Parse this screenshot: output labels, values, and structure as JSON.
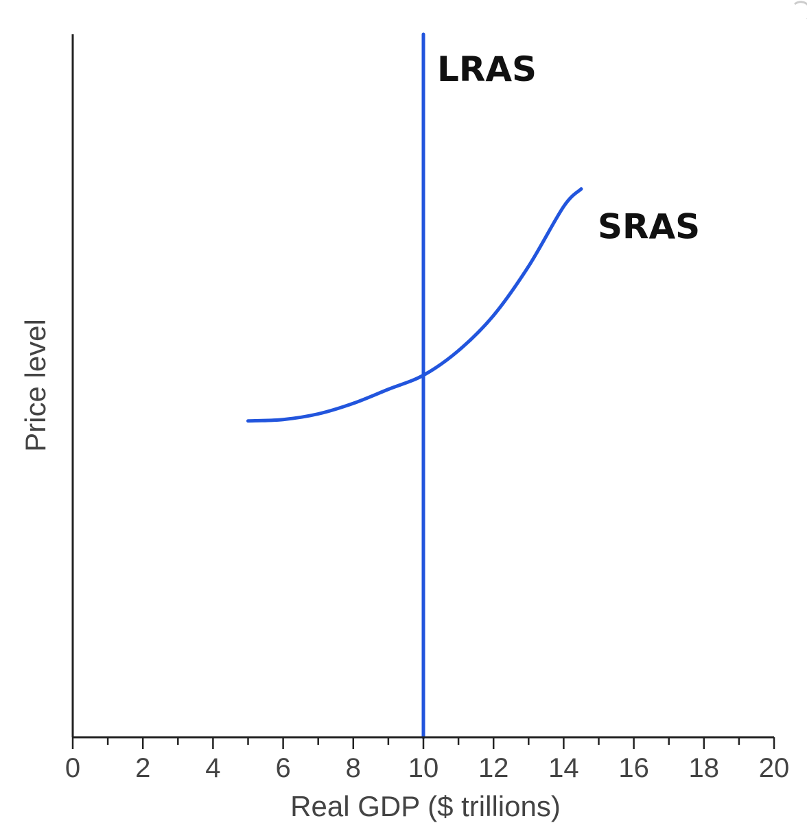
{
  "chart_data": {
    "type": "line",
    "xlabel": "Real GDP ($ trillions)",
    "ylabel": "Price level",
    "xlim": [
      0,
      20
    ],
    "x_ticks": [
      "0",
      "2",
      "4",
      "6",
      "8",
      "10",
      "12",
      "14",
      "16",
      "18",
      "20"
    ],
    "minor_tick_step": 1,
    "series": [
      {
        "name": "LRAS",
        "color": "#2255dd",
        "points": [
          [
            10,
            0
          ],
          [
            10,
            100
          ]
        ]
      },
      {
        "name": "SRAS",
        "color": "#2255dd",
        "points": [
          [
            5,
            45
          ],
          [
            6,
            45.2
          ],
          [
            7,
            46
          ],
          [
            8,
            47.5
          ],
          [
            9,
            49.5
          ],
          [
            10,
            51.5
          ],
          [
            11,
            55
          ],
          [
            12,
            60
          ],
          [
            13,
            67
          ],
          [
            14,
            75.5
          ],
          [
            14.5,
            78
          ]
        ]
      }
    ],
    "labels": {
      "lras": "LRAS",
      "sras": "SRAS"
    },
    "grid": false,
    "legend": "none"
  }
}
